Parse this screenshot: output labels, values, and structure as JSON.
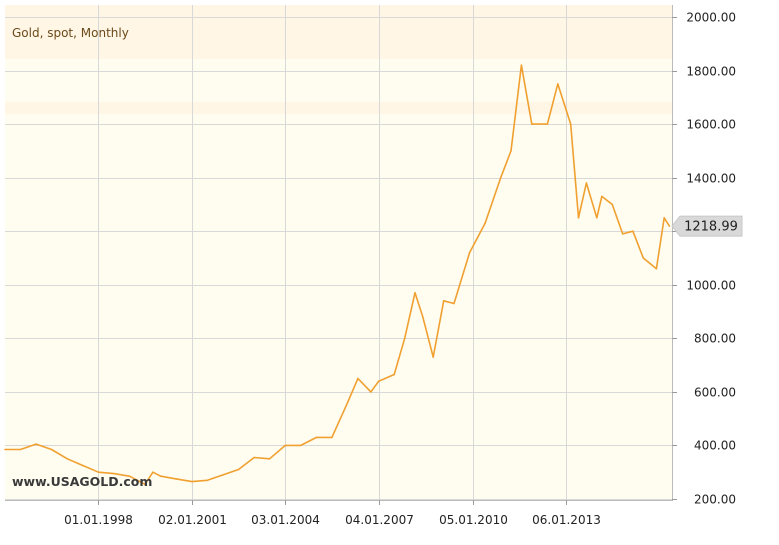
{
  "chart_data": {
    "type": "line",
    "title": "Gold, spot, Monthly",
    "xlabel": "",
    "ylabel": "",
    "ylim": [
      200,
      2000
    ],
    "yticks": [
      200,
      400,
      600,
      800,
      1000,
      1200,
      1400,
      1600,
      1800,
      2000
    ],
    "ytick_labels": [
      "200.00",
      "400.00",
      "600.00",
      "800.00",
      "1000.00",
      "1200.00",
      "1400.00",
      "1600.00",
      "1800.00",
      "2000.00"
    ],
    "xlim": [
      "1995-01-01",
      "2016-06-01"
    ],
    "xticks": [
      "1998-01-01",
      "2001-01-02",
      "2004-01-03",
      "2007-01-04",
      "2010-01-05",
      "2013-01-06"
    ],
    "xtick_labels": [
      "01.01.1998",
      "02.01.2001",
      "03.01.2004",
      "04.01.2007",
      "05.01.2010",
      "06.01.2013"
    ],
    "grid": true,
    "last_value_label": "1218.99",
    "watermark": "www.USAGOLD.com",
    "colors": {
      "line": "#f0a030",
      "background": "#fffdf0",
      "band_light": "#fff6e6",
      "grid": "#d8d8d8",
      "label_box": "#d9d9d9"
    },
    "series": [
      {
        "x": [
          "1995-01-01",
          "1995-07-01",
          "1996-01-01",
          "1996-07-01",
          "1997-01-01",
          "1997-07-01",
          "1998-01-01",
          "1998-07-01",
          "1999-01-01",
          "1999-07-01",
          "1999-10-01",
          "2000-01-01",
          "2000-07-01",
          "2001-01-01",
          "2001-07-01",
          "2002-01-01",
          "2002-07-01",
          "2003-01-01",
          "2003-07-01",
          "2004-01-01",
          "2004-07-01",
          "2005-01-01",
          "2005-07-01",
          "2006-01-01",
          "2006-05-01",
          "2006-10-01",
          "2007-01-01",
          "2007-07-01",
          "2007-11-01",
          "2008-03-01",
          "2008-06-01",
          "2008-10-01",
          "2009-02-01",
          "2009-06-01",
          "2009-12-01",
          "2010-06-01",
          "2010-12-01",
          "2011-04-01",
          "2011-08-01",
          "2011-12-01",
          "2012-06-01",
          "2012-10-01",
          "2013-03-01",
          "2013-06-01",
          "2013-09-01",
          "2014-01-01",
          "2014-03-01",
          "2014-07-01",
          "2014-11-01",
          "2015-03-01",
          "2015-07-01",
          "2015-12-01",
          "2016-03-01",
          "2016-05-01"
        ],
        "y": [
          385,
          385,
          405,
          385,
          350,
          325,
          300,
          295,
          285,
          255,
          300,
          285,
          275,
          265,
          270,
          290,
          310,
          355,
          350,
          400,
          400,
          430,
          430,
          560,
          650,
          600,
          640,
          665,
          800,
          970,
          880,
          730,
          940,
          930,
          1120,
          1230,
          1400,
          1500,
          1820,
          1600,
          1600,
          1750,
          1600,
          1250,
          1380,
          1250,
          1330,
          1300,
          1190,
          1200,
          1100,
          1060,
          1250,
          1219
        ]
      }
    ]
  }
}
